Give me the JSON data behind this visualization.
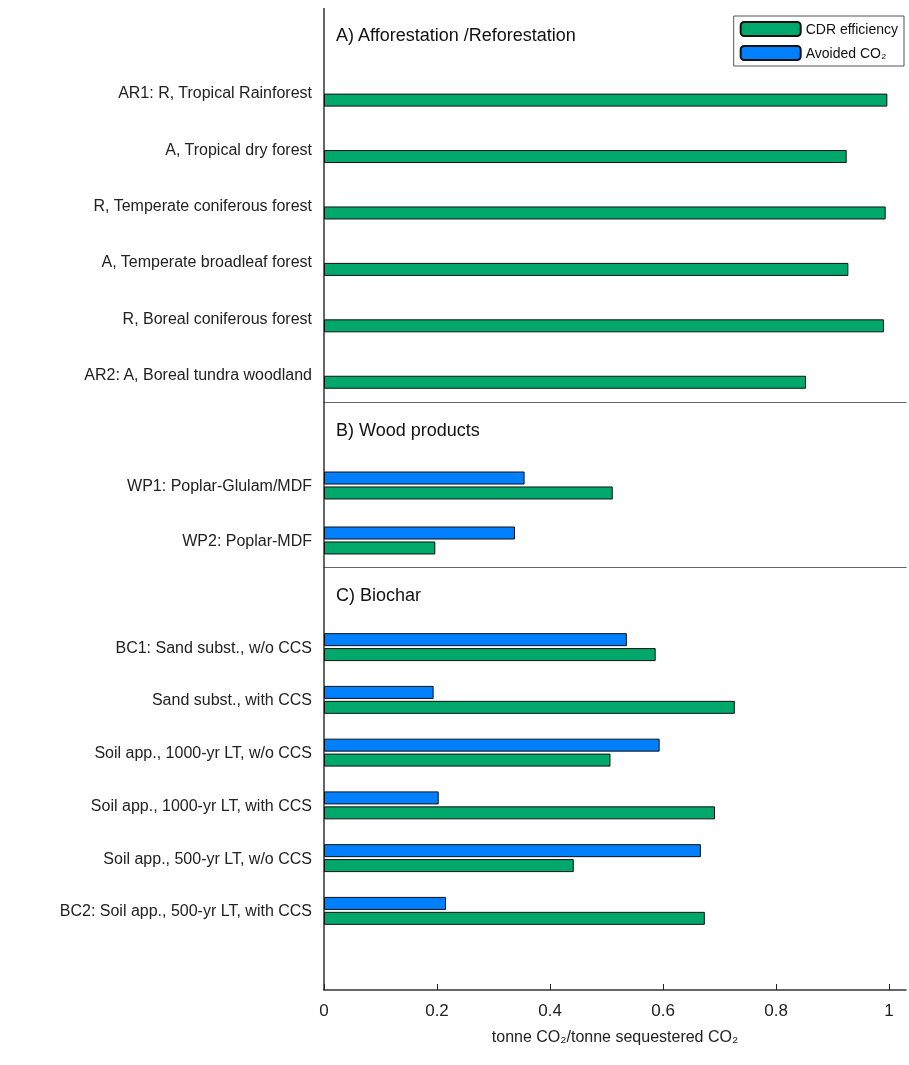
{
  "chart_data": [
    {
      "type": "bar",
      "orientation": "horizontal",
      "title": "A) Afforestation /Reforestation",
      "categories": [
        null,
        "AR1: R, Tropical Rainforest",
        "A, Tropical dry forest",
        "R, Temperate coniferous forest",
        "A, Temperate broadleaf forest",
        "R, Boreal coniferous forest",
        "AR2: A, Boreal tundra woodland"
      ],
      "series": [
        {
          "name": "CDR efficiency",
          "color": "#00a86b",
          "values": [
            null,
            0.997,
            0.925,
            0.994,
            0.928,
            0.991,
            0.853
          ]
        },
        {
          "name": "Avoided CO₂",
          "color": "#007fff",
          "values": [
            null,
            null,
            null,
            null,
            null,
            null,
            null
          ]
        }
      ],
      "xlim": [
        0,
        1.03
      ],
      "xticks": [
        0,
        0.2,
        0.4,
        0.6,
        0.8,
        1
      ],
      "tick_labels": "y",
      "legend": "top right",
      "grid": false
    },
    {
      "type": "bar",
      "orientation": "horizontal",
      "title": "B) Wood products",
      "categories": [
        null,
        "WP1: Poplar-Glulam/MDF",
        "WP2: Poplar-MDF"
      ],
      "series": [
        {
          "color": "#00a86b",
          "values": [
            null,
            0.511,
            0.197
          ]
        },
        {
          "color": "#007fff",
          "values": [
            null,
            0.355,
            0.338
          ]
        }
      ],
      "xlim": [
        0,
        1.03
      ],
      "xticks": [
        0,
        0.2,
        0.4,
        0.6,
        0.8,
        1
      ],
      "tick_labels": "y",
      "legend": false,
      "grid": false
    },
    {
      "type": "bar",
      "orientation": "horizontal",
      "title": "C) Biochar",
      "xlabel": "tonne CO₂/tonne sequestered CO₂",
      "categories": [
        null,
        "BC1: Sand subst., w/o CCS",
        "Sand subst., with CCS",
        "Soil app., 1000-yr LT, w/o CCS",
        "Soil app., 1000-yr LT, with CCS",
        "Soil app., 500-yr LT, w/o CCS",
        "BC2: Soil app., 500-yr LT, with CCS",
        null
      ],
      "series": [
        {
          "color": "#00a86b",
          "values": [
            null,
            0.587,
            0.727,
            0.507,
            0.692,
            0.442,
            0.674,
            null
          ]
        },
        {
          "color": "#007fff",
          "values": [
            null,
            0.536,
            0.194,
            0.594,
            0.203,
            0.667,
            0.216,
            null
          ]
        }
      ],
      "xlim": [
        0,
        1.03
      ],
      "xticks": [
        0,
        0.2,
        0.4,
        0.6,
        0.8,
        1
      ],
      "legend": false,
      "grid": false
    }
  ]
}
